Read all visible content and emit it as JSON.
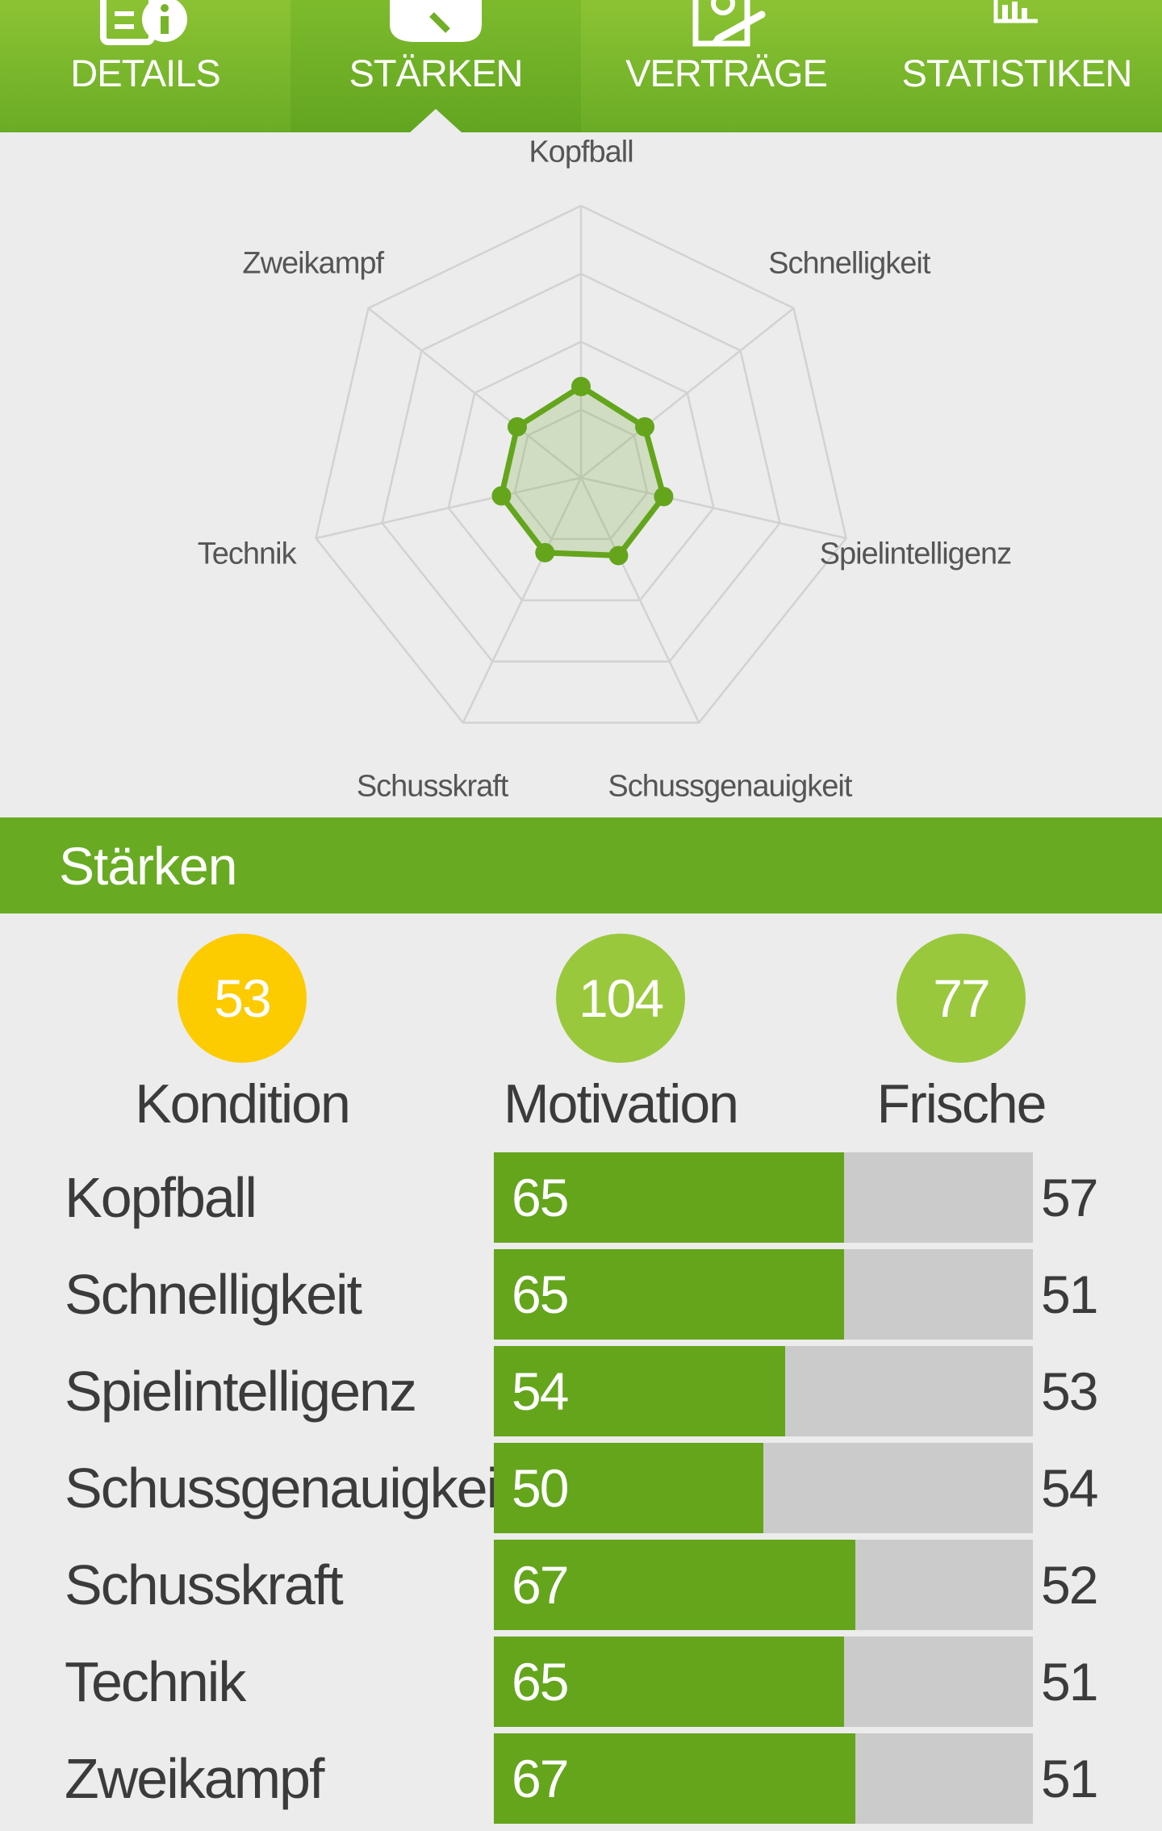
{
  "tabs": [
    {
      "label": "DETAILS",
      "icon": "details-info-icon",
      "active": false
    },
    {
      "label": "STÄRKEN",
      "icon": "strength-icon",
      "active": true
    },
    {
      "label": "VERTRÄGE",
      "icon": "contract-icon",
      "active": false
    },
    {
      "label": "STATISTIKEN",
      "icon": "statistics-icon",
      "active": false
    }
  ],
  "radar": {
    "axes": [
      "Kopfball",
      "Schnelligkeit",
      "Spielintelligenz",
      "Schussgenauigkeit",
      "Schusskraft",
      "Technik",
      "Zweikampf"
    ],
    "values": [
      57,
      51,
      53,
      54,
      52,
      51,
      51
    ],
    "max": 170,
    "levels": 4,
    "color": "#64a51c",
    "fill": "rgba(100,165,28,0.2)"
  },
  "section": {
    "title": "Stärken"
  },
  "summary": [
    {
      "value": "53",
      "label": "Kondition",
      "color": "#fccb00"
    },
    {
      "value": "104",
      "label": "Motivation",
      "color": "#9ac83c"
    },
    {
      "value": "77",
      "label": "Frische",
      "color": "#9ac83c"
    }
  ],
  "stats": [
    {
      "name": "Kopfball",
      "value": 65,
      "other": 57
    },
    {
      "name": "Schnelligkeit",
      "value": 65,
      "other": 51
    },
    {
      "name": "Spielintelligenz",
      "value": 54,
      "other": 53
    },
    {
      "name": "Schussgenauigkeit",
      "value": 50,
      "other": 54
    },
    {
      "name": "Schusskraft",
      "value": 67,
      "other": 52
    },
    {
      "name": "Technik",
      "value": 65,
      "other": 51
    },
    {
      "name": "Zweikampf",
      "value": 67,
      "other": 51
    }
  ],
  "stat_scale_max": 100,
  "colors": {
    "accent": "#68ab22",
    "bar_bg": "#cbcbcb",
    "background": "#ececec"
  }
}
